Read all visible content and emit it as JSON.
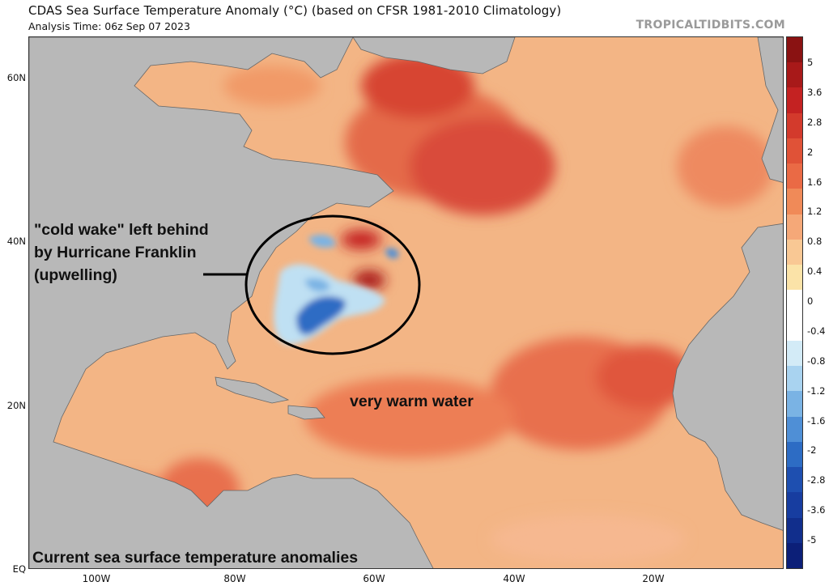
{
  "title": "CDAS Sea Surface Temperature Anomaly (°C) (based on CFSR 1981-2010 Climatology)",
  "analysis_time": "Analysis Time: 06z Sep 07 2023",
  "watermark": "TROPICALTIDBITS.COM",
  "lat_labels": [
    "60N",
    "40N",
    "20N",
    "EQ"
  ],
  "lon_labels": [
    "100W",
    "80W",
    "60W",
    "40W",
    "20W"
  ],
  "colorbar": {
    "labels": [
      "5",
      "3.6",
      "2.8",
      "2",
      "1.6",
      "1.2",
      "0.8",
      "0.4",
      "0",
      "-0.4",
      "-0.8",
      "-1.2",
      "-1.6",
      "-2",
      "-2.8",
      "-3.6",
      "-5"
    ],
    "colors": [
      "#8a1212",
      "#a81919",
      "#c42222",
      "#d33a2c",
      "#e05237",
      "#ea6a45",
      "#f08a58",
      "#f5a878",
      "#f9c894",
      "#fbe3a8",
      "#ffffff",
      "#ffffff",
      "#d3ebf7",
      "#a9d3f0",
      "#7ab3e4",
      "#4f8fd6",
      "#2d6cc4",
      "#1e4fb0",
      "#173da0",
      "#112e8c",
      "#0c1f78"
    ]
  },
  "annotations": {
    "cold_wake_line1": "\"cold wake\" left behind",
    "cold_wake_line2": "by Hurricane Franklin",
    "cold_wake_line3": "(upwelling)",
    "warm_water": "very warm water",
    "caption": "Current sea surface temperature anomalies"
  },
  "colors": {
    "land": "#b8b8b8",
    "border": "#666666",
    "warm_base": "#f3b585",
    "warm_hot": "#e0573c",
    "cold": "#2d6cc4"
  }
}
